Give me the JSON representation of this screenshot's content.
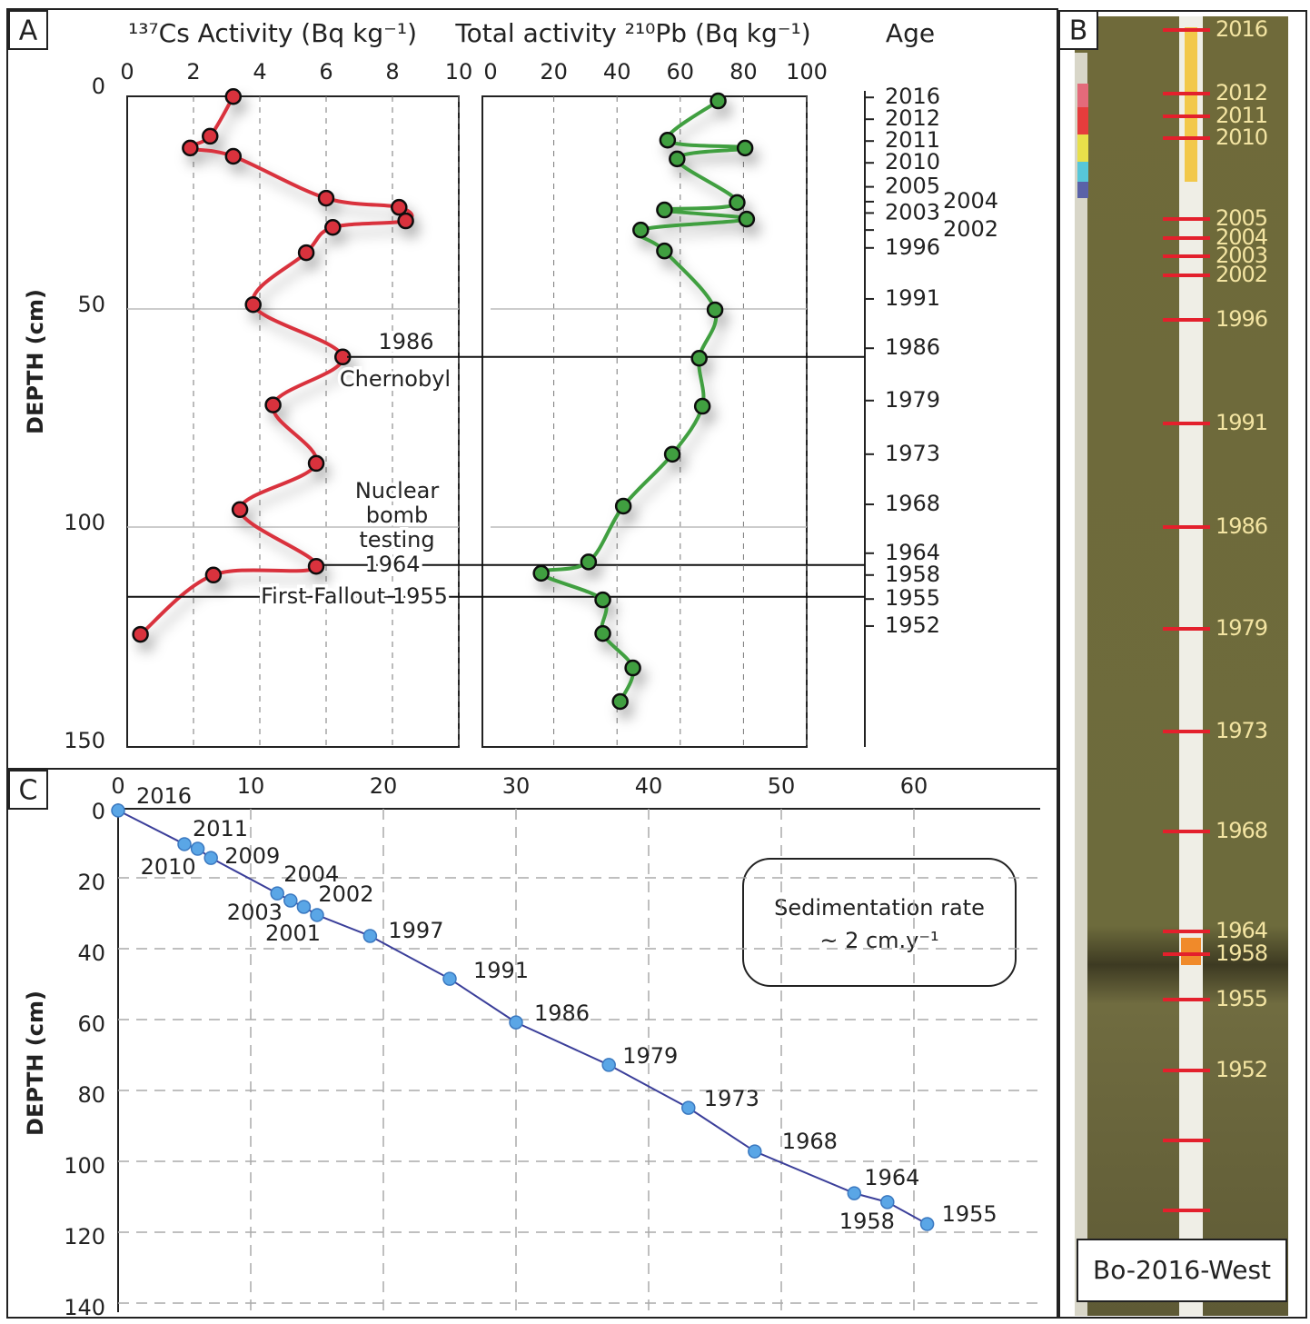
{
  "chart_data": [
    {
      "type": "line",
      "panel_label": "A",
      "title": "¹³⁷Cs Activity (Bq kg⁻¹)",
      "y_label": "DEPTH (cm)",
      "color": "#d9303e",
      "x": [
        3.2,
        2.5,
        1.9,
        3.2,
        6.0,
        8.2,
        8.4,
        6.2,
        5.4,
        3.8,
        6.5,
        4.4,
        5.7,
        3.4,
        5.7,
        2.6,
        0.4
      ],
      "y": [
        1.3,
        10.4,
        13.1,
        15,
        24.6,
        26.7,
        29.8,
        31.3,
        37.1,
        49,
        61,
        72,
        85.4,
        96,
        109,
        111,
        124.6
      ],
      "xlim": [
        0,
        10
      ],
      "xticks": [
        0,
        2,
        4,
        6,
        8,
        10
      ],
      "ylim": [
        0,
        150
      ],
      "yticks": [
        0,
        50,
        100,
        150
      ],
      "y_inverted": true,
      "events": [
        {
          "label": "1986",
          "note": [
            "Chernobyl"
          ],
          "depth": 61
        },
        {
          "label": "1964",
          "note": [
            "Nuclear",
            "bomb",
            "testing"
          ],
          "depth": 108.7
        },
        {
          "label": "First Fallout 1955",
          "depth": 116
        }
      ]
    },
    {
      "type": "line",
      "title": "Total activity ²¹⁰Pb (Bq kg⁻¹)",
      "color": "#3f9f3f",
      "sharey": true,
      "x": [
        72,
        56,
        80.5,
        59,
        78,
        55,
        81,
        47.5,
        55,
        71,
        66,
        67,
        57.5,
        42,
        31,
        16,
        35.5,
        35.5,
        45,
        41
      ],
      "y": [
        2.3,
        11.3,
        13.1,
        15.6,
        25.6,
        27.3,
        29.4,
        31.9,
        36.7,
        50.2,
        61.3,
        72.3,
        83.3,
        95.2,
        108,
        110.6,
        116.7,
        124.4,
        132.3,
        140
      ],
      "xlim": [
        0,
        100
      ],
      "xticks": [
        0,
        20,
        40,
        60,
        80,
        100
      ]
    },
    {
      "type": "age-axis",
      "title": "Age",
      "sharey": true,
      "labels": [
        "2016",
        "2012",
        "2011",
        "2010",
        "2005",
        "2004",
        "2003",
        "2002",
        "1996",
        "1991",
        "1986",
        "1979",
        "1973",
        "1968",
        "1964",
        "1958",
        "1955",
        "1952"
      ],
      "depths": [
        1.5,
        6.5,
        11.5,
        16.5,
        22,
        25.4,
        28,
        31.9,
        36,
        47.7,
        59,
        71,
        83.3,
        94.8,
        106,
        111,
        116.5,
        122.7
      ]
    },
    {
      "type": "line",
      "panel_label": "C",
      "y_label": "DEPTH (cm)",
      "color": "#5aa6e6",
      "line_color": "#3b3f9a",
      "x": [
        0,
        5,
        6,
        7,
        12,
        13,
        14,
        15,
        19,
        25,
        30,
        37,
        43,
        48,
        55.5,
        58,
        61
      ],
      "y": [
        1,
        10.5,
        11.8,
        14.4,
        24.4,
        26.4,
        28.2,
        30.5,
        36.4,
        48.5,
        60.8,
        72.8,
        84.9,
        97.2,
        109,
        111.5,
        117.7
      ],
      "point_labels": [
        "2016",
        "2011",
        "2010",
        "2009",
        "2004",
        "2003",
        "2002",
        "2001",
        "1997",
        "1991",
        "1986",
        "1979",
        "1973",
        "1968",
        "1964",
        "1958",
        "1955"
      ],
      "xlim": [
        0,
        70
      ],
      "xticks": [
        0,
        10,
        20,
        30,
        40,
        50,
        60
      ],
      "ylim": [
        0,
        140
      ],
      "yticks": [
        0,
        20,
        40,
        60,
        80,
        100,
        120,
        140
      ],
      "y_inverted": true,
      "grid": true,
      "annotation": [
        "Sedimentation rate",
        "~ 2 cm.y⁻¹"
      ]
    },
    {
      "type": "core-photo",
      "panel_label": "B",
      "core_name": "Bo-2016-West",
      "labels": [
        "2016",
        "2012",
        "2011",
        "2010",
        "2005",
        "2004",
        "2003",
        "2002",
        "1996",
        "1991",
        "1986",
        "1979",
        "1973",
        "1968",
        "1964",
        "1958",
        "1955",
        "1952"
      ]
    }
  ]
}
